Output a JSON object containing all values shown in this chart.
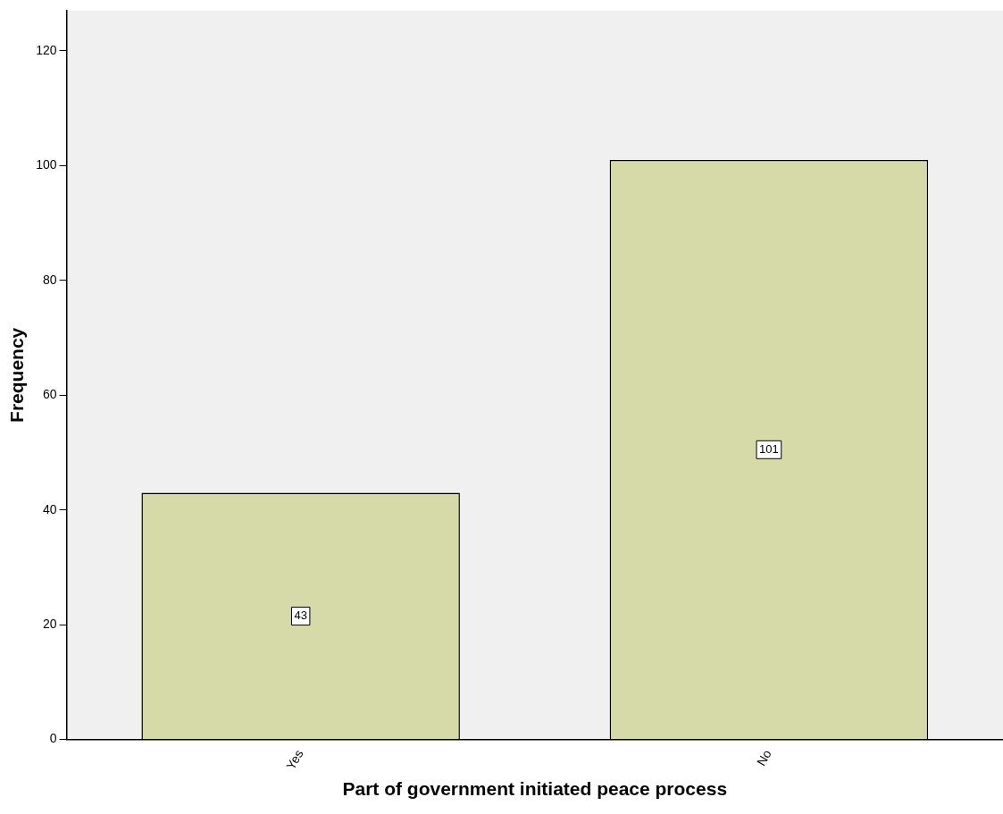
{
  "chart_data": {
    "type": "bar",
    "xlabel": "Part of government initiated peace process",
    "ylabel": "Frequency",
    "categories": [
      "Yes",
      "No"
    ],
    "values": [
      43,
      101
    ],
    "color": "#d6d9a8",
    "ylim": [
      0,
      127
    ],
    "yticks": [
      0,
      20,
      40,
      60,
      80,
      100,
      120
    ],
    "grid": false,
    "legend": false,
    "data_labels": true
  }
}
